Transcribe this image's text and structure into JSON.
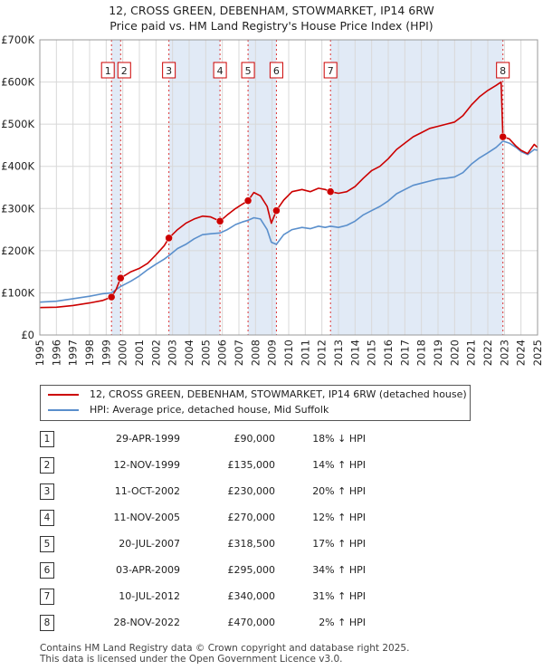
{
  "title": {
    "line1": "12, CROSS GREEN, DEBENHAM, STOWMARKET, IP14 6RW",
    "line2": "Price paid vs. HM Land Registry's House Price Index (HPI)"
  },
  "colors": {
    "property": "#cc0000",
    "hpi": "#5a8fcc",
    "shade": "#dce6f5",
    "marker": "#cc0000"
  },
  "chart_data": {
    "type": "line",
    "x_range": [
      1995,
      2025
    ],
    "y_range": [
      0,
      700000
    ],
    "y_ticks": [
      0,
      100000,
      200000,
      300000,
      400000,
      500000,
      600000,
      700000
    ],
    "y_tick_labels": [
      "£0",
      "£100K",
      "£200K",
      "£300K",
      "£400K",
      "£500K",
      "£600K",
      "£700K"
    ],
    "x_ticks": [
      1995,
      1996,
      1997,
      1998,
      1999,
      2000,
      2001,
      2002,
      2003,
      2004,
      2005,
      2006,
      2007,
      2008,
      2009,
      2010,
      2011,
      2012,
      2013,
      2014,
      2015,
      2016,
      2017,
      2018,
      2019,
      2020,
      2021,
      2022,
      2023,
      2024,
      2025
    ],
    "x_tick_labels": [
      "1995",
      "1996",
      "1997",
      "1998",
      "1999",
      "2000",
      "2001",
      "2002",
      "2003",
      "2004",
      "2005",
      "2006",
      "2007",
      "2008",
      "2009",
      "2010",
      "2011",
      "2012",
      "2013",
      "2014",
      "2015",
      "2016",
      "2017",
      "2018",
      "2019",
      "2020",
      "2021",
      "2022",
      "2023",
      "2024",
      "2025"
    ],
    "shaded_ranges": [
      [
        1999.32,
        1999.87
      ],
      [
        2002.78,
        2005.86
      ],
      [
        2007.55,
        2009.26
      ],
      [
        2012.52,
        2022.91
      ]
    ],
    "series": [
      {
        "name": "12, CROSS GREEN, DEBENHAM, STOWMARKET, IP14 6RW (detached house)",
        "color": "#cc0000",
        "points": [
          [
            1995.0,
            65000
          ],
          [
            1996.0,
            66000
          ],
          [
            1997.0,
            70000
          ],
          [
            1998.0,
            76000
          ],
          [
            1998.8,
            82000
          ],
          [
            1999.32,
            90000
          ],
          [
            1999.6,
            108000
          ],
          [
            1999.87,
            135000
          ],
          [
            2000.5,
            150000
          ],
          [
            2001.0,
            158000
          ],
          [
            2001.5,
            170000
          ],
          [
            2002.0,
            190000
          ],
          [
            2002.5,
            212000
          ],
          [
            2002.78,
            230000
          ],
          [
            2003.3,
            250000
          ],
          [
            2003.8,
            265000
          ],
          [
            2004.3,
            275000
          ],
          [
            2004.8,
            282000
          ],
          [
            2005.3,
            280000
          ],
          [
            2005.86,
            270000
          ],
          [
            2006.3,
            285000
          ],
          [
            2006.8,
            300000
          ],
          [
            2007.2,
            310000
          ],
          [
            2007.55,
            318500
          ],
          [
            2007.9,
            338000
          ],
          [
            2008.3,
            330000
          ],
          [
            2008.7,
            305000
          ],
          [
            2008.95,
            265000
          ],
          [
            2009.26,
            295000
          ],
          [
            2009.7,
            320000
          ],
          [
            2010.2,
            340000
          ],
          [
            2010.8,
            345000
          ],
          [
            2011.3,
            340000
          ],
          [
            2011.8,
            348000
          ],
          [
            2012.2,
            345000
          ],
          [
            2012.52,
            340000
          ],
          [
            2013.0,
            336000
          ],
          [
            2013.5,
            340000
          ],
          [
            2014.0,
            352000
          ],
          [
            2014.5,
            372000
          ],
          [
            2015.0,
            390000
          ],
          [
            2015.5,
            400000
          ],
          [
            2016.0,
            418000
          ],
          [
            2016.5,
            440000
          ],
          [
            2017.0,
            455000
          ],
          [
            2017.5,
            470000
          ],
          [
            2018.0,
            480000
          ],
          [
            2018.5,
            490000
          ],
          [
            2019.0,
            495000
          ],
          [
            2019.5,
            500000
          ],
          [
            2020.0,
            505000
          ],
          [
            2020.5,
            520000
          ],
          [
            2021.0,
            545000
          ],
          [
            2021.5,
            565000
          ],
          [
            2022.0,
            580000
          ],
          [
            2022.5,
            592000
          ],
          [
            2022.8,
            600000
          ],
          [
            2022.91,
            470000
          ],
          [
            2023.3,
            465000
          ],
          [
            2023.7,
            448000
          ],
          [
            2024.0,
            438000
          ],
          [
            2024.4,
            430000
          ],
          [
            2024.8,
            452000
          ],
          [
            2025.0,
            445000
          ]
        ]
      },
      {
        "name": "HPI: Average price, detached house, Mid Suffolk",
        "color": "#5a8fcc",
        "points": [
          [
            1995.0,
            78000
          ],
          [
            1996.0,
            80000
          ],
          [
            1997.0,
            86000
          ],
          [
            1998.0,
            92000
          ],
          [
            1998.8,
            98000
          ],
          [
            1999.32,
            100000
          ],
          [
            1999.87,
            115000
          ],
          [
            2000.5,
            128000
          ],
          [
            2001.0,
            140000
          ],
          [
            2001.5,
            155000
          ],
          [
            2002.0,
            168000
          ],
          [
            2002.5,
            180000
          ],
          [
            2002.78,
            188000
          ],
          [
            2003.3,
            205000
          ],
          [
            2003.8,
            215000
          ],
          [
            2004.3,
            228000
          ],
          [
            2004.8,
            238000
          ],
          [
            2005.3,
            240000
          ],
          [
            2005.86,
            242000
          ],
          [
            2006.3,
            250000
          ],
          [
            2006.8,
            262000
          ],
          [
            2007.2,
            268000
          ],
          [
            2007.55,
            272000
          ],
          [
            2007.9,
            278000
          ],
          [
            2008.3,
            275000
          ],
          [
            2008.7,
            250000
          ],
          [
            2008.95,
            220000
          ],
          [
            2009.26,
            215000
          ],
          [
            2009.7,
            238000
          ],
          [
            2010.2,
            250000
          ],
          [
            2010.8,
            255000
          ],
          [
            2011.3,
            252000
          ],
          [
            2011.8,
            258000
          ],
          [
            2012.2,
            255000
          ],
          [
            2012.52,
            258000
          ],
          [
            2013.0,
            255000
          ],
          [
            2013.5,
            260000
          ],
          [
            2014.0,
            270000
          ],
          [
            2014.5,
            285000
          ],
          [
            2015.0,
            295000
          ],
          [
            2015.5,
            305000
          ],
          [
            2016.0,
            318000
          ],
          [
            2016.5,
            335000
          ],
          [
            2017.0,
            345000
          ],
          [
            2017.5,
            355000
          ],
          [
            2018.0,
            360000
          ],
          [
            2018.5,
            365000
          ],
          [
            2019.0,
            370000
          ],
          [
            2019.5,
            372000
          ],
          [
            2020.0,
            375000
          ],
          [
            2020.5,
            385000
          ],
          [
            2021.0,
            405000
          ],
          [
            2021.5,
            420000
          ],
          [
            2022.0,
            432000
          ],
          [
            2022.5,
            445000
          ],
          [
            2022.91,
            460000
          ],
          [
            2023.3,
            455000
          ],
          [
            2023.7,
            445000
          ],
          [
            2024.0,
            435000
          ],
          [
            2024.4,
            428000
          ],
          [
            2024.8,
            440000
          ],
          [
            2025.0,
            438000
          ]
        ]
      }
    ],
    "sales": [
      {
        "num": "1",
        "x": 1999.32,
        "price": 90000
      },
      {
        "num": "2",
        "x": 1999.87,
        "price": 135000
      },
      {
        "num": "3",
        "x": 2002.78,
        "price": 230000
      },
      {
        "num": "4",
        "x": 2005.86,
        "price": 270000
      },
      {
        "num": "5",
        "x": 2007.55,
        "price": 318500
      },
      {
        "num": "6",
        "x": 2009.26,
        "price": 295000
      },
      {
        "num": "7",
        "x": 2012.52,
        "price": 340000
      },
      {
        "num": "8",
        "x": 2022.91,
        "price": 470000
      }
    ]
  },
  "legend": {
    "property_label": "12, CROSS GREEN, DEBENHAM, STOWMARKET, IP14 6RW (detached house)",
    "hpi_label": "HPI: Average price, detached house, Mid Suffolk"
  },
  "table": [
    {
      "num": "1",
      "date": "29-APR-1999",
      "price": "£90,000",
      "hpi": "18% ↓ HPI"
    },
    {
      "num": "2",
      "date": "12-NOV-1999",
      "price": "£135,000",
      "hpi": "14% ↑ HPI"
    },
    {
      "num": "3",
      "date": "11-OCT-2002",
      "price": "£230,000",
      "hpi": "20% ↑ HPI"
    },
    {
      "num": "4",
      "date": "11-NOV-2005",
      "price": "£270,000",
      "hpi": "12% ↑ HPI"
    },
    {
      "num": "5",
      "date": "20-JUL-2007",
      "price": "£318,500",
      "hpi": "17% ↑ HPI"
    },
    {
      "num": "6",
      "date": "03-APR-2009",
      "price": "£295,000",
      "hpi": "34% ↑ HPI"
    },
    {
      "num": "7",
      "date": "10-JUL-2012",
      "price": "£340,000",
      "hpi": "31% ↑ HPI"
    },
    {
      "num": "8",
      "date": "28-NOV-2022",
      "price": "£470,000",
      "hpi": "2% ↑ HPI"
    }
  ],
  "footer": {
    "line1": "Contains HM Land Registry data © Crown copyright and database right 2025.",
    "line2": "This data is licensed under the Open Government Licence v3.0."
  }
}
